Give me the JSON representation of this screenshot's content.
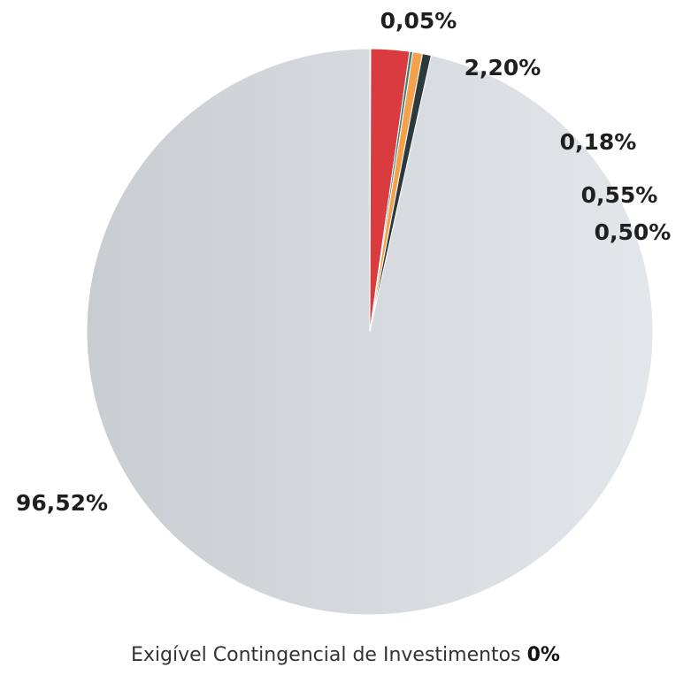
{
  "chart_data": {
    "type": "pie",
    "categories": [
      null,
      null,
      null,
      null,
      null,
      null
    ],
    "values": [
      0.05,
      2.2,
      0.18,
      0.55,
      0.5,
      96.52
    ],
    "value_labels": [
      "0,05%",
      "2,20%",
      "0,18%",
      "0,55%",
      "0,50%",
      "96,52%"
    ],
    "colors": [
      "#4a78c4",
      "#d93b3f",
      "#3a8080",
      "#f5a04a",
      "#2c3a3e",
      "#d6dadf"
    ],
    "caption": "Exigível Contingencial de Investimentos",
    "caption_value": "0%"
  }
}
